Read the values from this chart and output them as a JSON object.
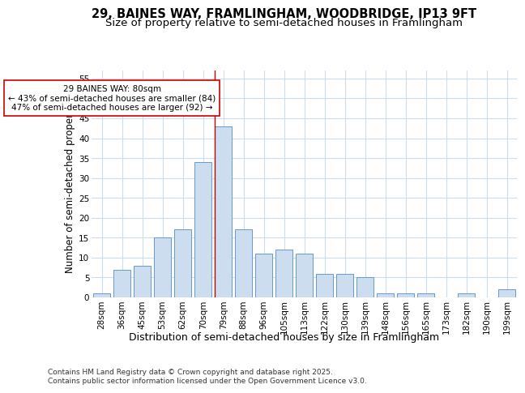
{
  "title1": "29, BAINES WAY, FRAMLINGHAM, WOODBRIDGE, IP13 9FT",
  "title2": "Size of property relative to semi-detached houses in Framlingham",
  "xlabel": "Distribution of semi-detached houses by size in Framlingham",
  "ylabel": "Number of semi-detached properties",
  "categories": [
    "28sqm",
    "36sqm",
    "45sqm",
    "53sqm",
    "62sqm",
    "70sqm",
    "79sqm",
    "88sqm",
    "96sqm",
    "105sqm",
    "113sqm",
    "122sqm",
    "130sqm",
    "139sqm",
    "148sqm",
    "156sqm",
    "165sqm",
    "173sqm",
    "182sqm",
    "190sqm",
    "199sqm"
  ],
  "values": [
    1,
    7,
    8,
    15,
    17,
    34,
    43,
    17,
    11,
    12,
    11,
    6,
    6,
    5,
    1,
    1,
    1,
    0,
    1,
    0,
    2
  ],
  "bar_color": "#ccddf0",
  "bar_edge_color": "#6699cc",
  "vline_color": "#cc0000",
  "vline_x_index": 6,
  "annotation_line1": "29 BAINES WAY: 80sqm",
  "annotation_line2": "← 43% of semi-detached houses are smaller (84)",
  "annotation_line3": "47% of semi-detached houses are larger (92) →",
  "annotation_box_facecolor": "#ffffff",
  "annotation_box_edgecolor": "#cc0000",
  "ylim": [
    0,
    57
  ],
  "yticks": [
    0,
    5,
    10,
    15,
    20,
    25,
    30,
    35,
    40,
    45,
    50,
    55
  ],
  "background_color": "#ffffff",
  "plot_bg_color": "#ffffff",
  "grid_color": "#ccddee",
  "footer_line1": "Contains HM Land Registry data © Crown copyright and database right 2025.",
  "footer_line2": "Contains public sector information licensed under the Open Government Licence v3.0.",
  "title1_fontsize": 10.5,
  "title2_fontsize": 9.5,
  "xlabel_fontsize": 9,
  "ylabel_fontsize": 8.5,
  "tick_fontsize": 7.5,
  "annotation_fontsize": 7.5,
  "footer_fontsize": 6.5
}
